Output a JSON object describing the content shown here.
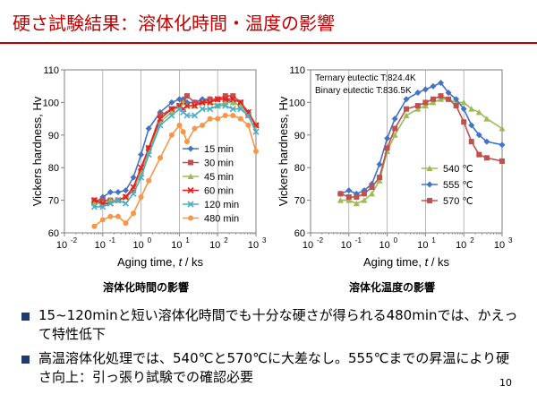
{
  "slide": {
    "title": "硬さ試験結果：溶体化時間・温度の影響",
    "page_number": "10",
    "accent_color": "#c00000",
    "bullet_color": "#1f3b73"
  },
  "captions": {
    "left": "溶体化時間の影響",
    "right": "溶体化温度の影響"
  },
  "bullets": [
    "15~120minと短い溶体化時間でも十分な硬さが得られる480minでは、かえって特性低下",
    "高温溶体化処理では、540℃と570℃に大差なし。555℃までの昇温により硬さ向上：引っ張り試験での確認必要"
  ],
  "chart_data": [
    {
      "type": "line",
      "xscale": "log",
      "xlim": [
        -2,
        3
      ],
      "ylim": [
        60,
        110
      ],
      "yticks": [
        "60",
        "70",
        "80",
        "90",
        "100",
        "110"
      ],
      "xticks": [
        "10",
        "10",
        "10",
        "10",
        "10",
        "10"
      ],
      "xtick_exponents": [
        "-2",
        "-1",
        "0",
        "1",
        "2",
        "3"
      ],
      "xlabel": "Aging time, ",
      "xlabel_italic": "t",
      "xlabel_unit": " / ks",
      "ylabel": "Vickers hardness, Hv",
      "grid": "vertical",
      "legend_position": "right",
      "series": [
        {
          "name": "15 min",
          "color": "#4472c4",
          "marker": "diamond",
          "points": [
            [
              -1.22,
              69
            ],
            [
              -1.0,
              71
            ],
            [
              -0.8,
              72.5
            ],
            [
              -0.6,
              72.5
            ],
            [
              -0.4,
              73
            ],
            [
              -0.2,
              77
            ],
            [
              0.0,
              84
            ],
            [
              0.2,
              92
            ],
            [
              0.5,
              97
            ],
            [
              0.8,
              100
            ],
            [
              1.0,
              101
            ],
            [
              1.1,
              101
            ],
            [
              1.2,
              100
            ],
            [
              1.4,
              100
            ],
            [
              1.6,
              101
            ],
            [
              1.8,
              101
            ],
            [
              2.0,
              101
            ],
            [
              2.2,
              101
            ],
            [
              2.4,
              100
            ],
            [
              2.6,
              99
            ],
            [
              2.8,
              97
            ],
            [
              3.0,
              93
            ]
          ]
        },
        {
          "name": "30 min",
          "color": "#c0504d",
          "marker": "square",
          "points": [
            [
              -1.22,
              70
            ],
            [
              -1.0,
              70
            ],
            [
              -0.8,
              70
            ],
            [
              -0.6,
              70
            ],
            [
              -0.4,
              71
            ],
            [
              -0.2,
              73
            ],
            [
              0.0,
              79
            ],
            [
              0.2,
              86
            ],
            [
              0.5,
              96
            ],
            [
              0.8,
              98
            ],
            [
              1.0,
              99
            ],
            [
              1.1,
              100
            ],
            [
              1.2,
              102
            ],
            [
              1.4,
              100
            ],
            [
              1.6,
              100
            ],
            [
              1.8,
              101
            ],
            [
              2.0,
              101
            ],
            [
              2.2,
              102
            ],
            [
              2.4,
              102
            ],
            [
              2.6,
              100
            ],
            [
              2.8,
              96
            ],
            [
              3.0,
              93
            ]
          ]
        },
        {
          "name": "45 min",
          "color": "#9bbb59",
          "marker": "triangle",
          "points": [
            [
              -1.22,
              69
            ],
            [
              -1.0,
              69
            ],
            [
              -0.8,
              70
            ],
            [
              -0.6,
              70
            ],
            [
              -0.4,
              71
            ],
            [
              -0.2,
              74
            ],
            [
              0.0,
              78
            ],
            [
              0.2,
              85
            ],
            [
              0.5,
              94
            ],
            [
              0.8,
              97
            ],
            [
              1.0,
              99
            ],
            [
              1.1,
              100
            ],
            [
              1.2,
              99
            ],
            [
              1.4,
              99
            ],
            [
              1.6,
              100
            ],
            [
              1.8,
              100
            ],
            [
              2.0,
              99
            ],
            [
              2.2,
              100
            ],
            [
              2.4,
              100
            ],
            [
              2.6,
              99
            ],
            [
              2.8,
              96
            ],
            [
              3.0,
              93
            ]
          ]
        },
        {
          "name": "60 min",
          "color": "#ee1c1c",
          "marker": "x",
          "points": [
            [
              -1.22,
              70
            ],
            [
              -1.0,
              69
            ],
            [
              -0.8,
              69
            ],
            [
              -0.6,
              70
            ],
            [
              -0.4,
              71
            ],
            [
              -0.2,
              74
            ],
            [
              0.0,
              80
            ],
            [
              0.2,
              86
            ],
            [
              0.5,
              95
            ],
            [
              0.8,
              98
            ],
            [
              1.0,
              99
            ],
            [
              1.1,
              98
            ],
            [
              1.2,
              99
            ],
            [
              1.4,
              99
            ],
            [
              1.6,
              100
            ],
            [
              1.8,
              100
            ],
            [
              2.0,
              101
            ],
            [
              2.2,
              101
            ],
            [
              2.4,
              101
            ],
            [
              2.6,
              100
            ],
            [
              2.8,
              97
            ],
            [
              3.0,
              93
            ]
          ]
        },
        {
          "name": "120 min",
          "color": "#4bacc6",
          "marker": "x",
          "points": [
            [
              -1.22,
              68
            ],
            [
              -1.0,
              68
            ],
            [
              -0.8,
              69
            ],
            [
              -0.6,
              70
            ],
            [
              -0.4,
              69
            ],
            [
              -0.2,
              72
            ],
            [
              0.0,
              77
            ],
            [
              0.2,
              84
            ],
            [
              0.5,
              93
            ],
            [
              0.8,
              96
            ],
            [
              1.0,
              98
            ],
            [
              1.1,
              97
            ],
            [
              1.2,
              96
            ],
            [
              1.4,
              96
            ],
            [
              1.6,
              98
            ],
            [
              1.8,
              98
            ],
            [
              2.0,
              99
            ],
            [
              2.2,
              99
            ],
            [
              2.4,
              98
            ],
            [
              2.6,
              98
            ],
            [
              2.8,
              96
            ],
            [
              3.0,
              91
            ]
          ]
        },
        {
          "name": "480 min",
          "color": "#f79646",
          "marker": "circle",
          "points": [
            [
              -1.22,
              62
            ],
            [
              -1.0,
              64
            ],
            [
              -0.8,
              65
            ],
            [
              -0.6,
              65
            ],
            [
              -0.4,
              63
            ],
            [
              -0.2,
              66
            ],
            [
              0.0,
              71
            ],
            [
              0.2,
              76
            ],
            [
              0.5,
              83
            ],
            [
              0.8,
              90
            ],
            [
              1.0,
              93
            ],
            [
              1.1,
              91
            ],
            [
              1.2,
              88
            ],
            [
              1.4,
              92
            ],
            [
              1.6,
              93
            ],
            [
              1.8,
              95
            ],
            [
              2.0,
              95
            ],
            [
              2.2,
              96
            ],
            [
              2.4,
              96
            ],
            [
              2.6,
              95
            ],
            [
              2.8,
              93
            ],
            [
              3.0,
              85
            ]
          ]
        }
      ]
    },
    {
      "type": "line",
      "xscale": "log",
      "xlim": [
        -2,
        3
      ],
      "ylim": [
        60,
        110
      ],
      "yticks": [
        "60",
        "70",
        "80",
        "90",
        "100",
        "110"
      ],
      "xticks": [
        "10",
        "10",
        "10",
        "10",
        "10",
        "10"
      ],
      "xtick_exponents": [
        "-2",
        "-1",
        "0",
        "1",
        "2",
        "3"
      ],
      "xlabel": "Aging time, ",
      "xlabel_italic": "t",
      "xlabel_unit": " / ks",
      "ylabel": "Vickers hardness, Hv",
      "grid": "vertical",
      "legend_position": "right",
      "annotations": [
        "Ternary eutectic T:824.4K",
        "Binary eutectic T:836.5K"
      ],
      "series": [
        {
          "name": "540 ℃",
          "color": "#9bbb59",
          "marker": "triangle",
          "points": [
            [
              -1.22,
              70
            ],
            [
              -1.0,
              70
            ],
            [
              -0.8,
              69
            ],
            [
              -0.6,
              70
            ],
            [
              -0.4,
              72
            ],
            [
              -0.2,
              76
            ],
            [
              0.0,
              85
            ],
            [
              0.2,
              90
            ],
            [
              0.5,
              96
            ],
            [
              0.8,
              98
            ],
            [
              1.0,
              99
            ],
            [
              1.2,
              100
            ],
            [
              1.4,
              101
            ],
            [
              1.6,
              101
            ],
            [
              1.8,
              100
            ],
            [
              2.0,
              100
            ],
            [
              2.2,
              98
            ],
            [
              2.4,
              97
            ],
            [
              2.6,
              95
            ],
            [
              3.0,
              92
            ]
          ]
        },
        {
          "name": "555 ℃",
          "color": "#4472c4",
          "marker": "diamond",
          "points": [
            [
              -1.22,
              72
            ],
            [
              -1.0,
              73
            ],
            [
              -0.8,
              72
            ],
            [
              -0.6,
              73
            ],
            [
              -0.4,
              75
            ],
            [
              -0.2,
              81
            ],
            [
              0.0,
              89
            ],
            [
              0.2,
              95
            ],
            [
              0.5,
              101
            ],
            [
              0.8,
              103
            ],
            [
              1.0,
              104
            ],
            [
              1.2,
              105
            ],
            [
              1.4,
              106
            ],
            [
              1.6,
              103
            ],
            [
              1.8,
              101
            ],
            [
              2.0,
              98
            ],
            [
              2.2,
              93
            ],
            [
              2.4,
              90
            ],
            [
              2.6,
              88
            ],
            [
              3.0,
              87
            ]
          ]
        },
        {
          "name": "570 ℃",
          "color": "#c0504d",
          "marker": "square",
          "points": [
            [
              -1.22,
              72
            ],
            [
              -1.0,
              71
            ],
            [
              -0.8,
              71
            ],
            [
              -0.6,
              72
            ],
            [
              -0.4,
              74
            ],
            [
              -0.2,
              77
            ],
            [
              0.0,
              86
            ],
            [
              0.2,
              92
            ],
            [
              0.5,
              98
            ],
            [
              0.8,
              99
            ],
            [
              1.0,
              100
            ],
            [
              1.2,
              101
            ],
            [
              1.4,
              102
            ],
            [
              1.6,
              101
            ],
            [
              1.8,
              99
            ],
            [
              2.0,
              94
            ],
            [
              2.2,
              88
            ],
            [
              2.4,
              84
            ],
            [
              2.6,
              83
            ],
            [
              3.0,
              82
            ]
          ]
        }
      ]
    }
  ]
}
